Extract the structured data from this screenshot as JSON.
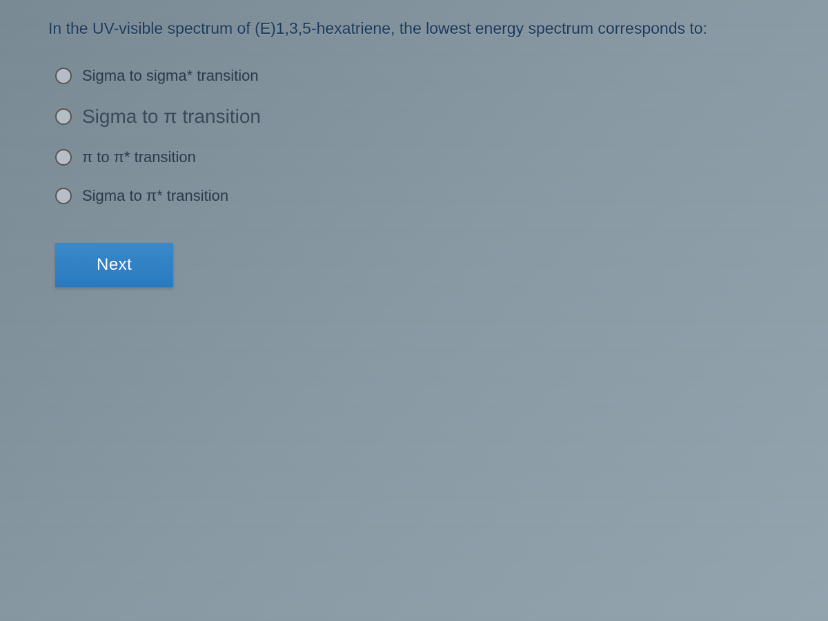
{
  "question": {
    "text": "In the UV-visible spectrum of (E)1,3,5-hexatriene, the lowest energy spectrum corresponds to:",
    "text_color": "#1a3a5a",
    "font_size": 23
  },
  "options": [
    {
      "label": "Sigma to sigma* transition",
      "font_size": 22,
      "selected": false
    },
    {
      "label": "Sigma to π transition",
      "font_size": 28,
      "selected": false
    },
    {
      "label": "π to π* transition",
      "font_size": 22,
      "selected": false
    },
    {
      "label": "Sigma to π* transition",
      "font_size": 22,
      "selected": false
    }
  ],
  "button": {
    "next_label": "Next",
    "background_color": "#2a7ac0",
    "text_color": "#ffffff"
  },
  "styling": {
    "background_gradient_start": "#7a8a95",
    "background_gradient_end": "#95a5b0",
    "radio_border_color": "#555555",
    "radio_size": 24
  }
}
